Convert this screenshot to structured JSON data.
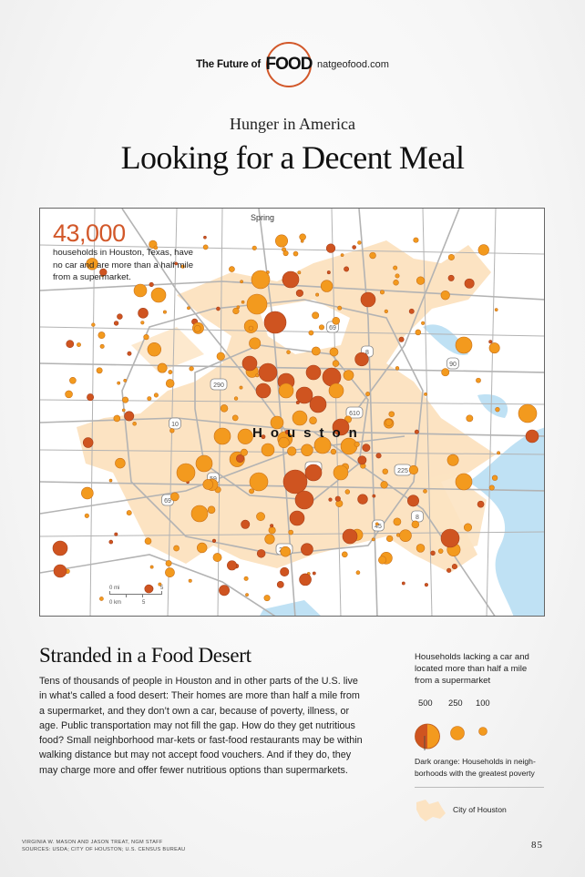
{
  "header": {
    "brand_prefix": "The Future of",
    "brand_logo": "FOOD",
    "brand_url": "natgeofood.com",
    "kicker": "Hunger in America",
    "title": "Looking for a Decent Meal"
  },
  "map": {
    "callout_number": "43,000",
    "callout_text": "households in Houston, Texas, have no car and are more than a half mile from a supermarket.",
    "place_labels": {
      "spring": "Spring",
      "houston": "Houston"
    },
    "highway_shields": [
      "45",
      "69",
      "8",
      "90",
      "290",
      "610",
      "10",
      "59",
      "225",
      "288",
      "45",
      "69",
      "8",
      "610"
    ],
    "scale": {
      "mi_label": "0 mi",
      "km_label": "0 km",
      "mi_end": "5",
      "km_end": "5"
    },
    "colors": {
      "high_poverty": "#cf5420",
      "standard": "#f39a1e",
      "city_fill": "#fce3c2",
      "water": "#bfe1f4",
      "roads": "#b3b3b3"
    }
  },
  "article": {
    "section_title": "Stranded in a Food Desert",
    "body": "Tens of thousands of people in Houston and in other parts of the U.S. live in what’s called a food desert: Their homes are more than half a mile from a supermarket, and they don’t own a car, because of poverty, illness, or age. Public transportation may not fill the gap. How do they get nutritious food? Small neighborhood mar-kets or fast-food restaurants may be within walking distance but may not accept food vouchers. And if they do, they may charge more and offer fewer nutritious options than supermarkets."
  },
  "legend": {
    "heading": "Households lacking a car and located more than half a mile from a supermarket",
    "sizes": [
      {
        "label": "500",
        "value": 500
      },
      {
        "label": "250",
        "value": 250
      },
      {
        "label": "100",
        "value": 100
      }
    ],
    "dark_note": "Dark orange: Households in neigh-borhoods with the greatest poverty",
    "city_label": "City of Houston"
  },
  "footer": {
    "credit_line1": "VIRGINIA W. MASON AND JASON TREAT, NGM STAFF",
    "credit_line2": "SOURCES: USDA; CITY OF HOUSTON; U.S. CENSUS BUREAU",
    "page_number": "85"
  }
}
